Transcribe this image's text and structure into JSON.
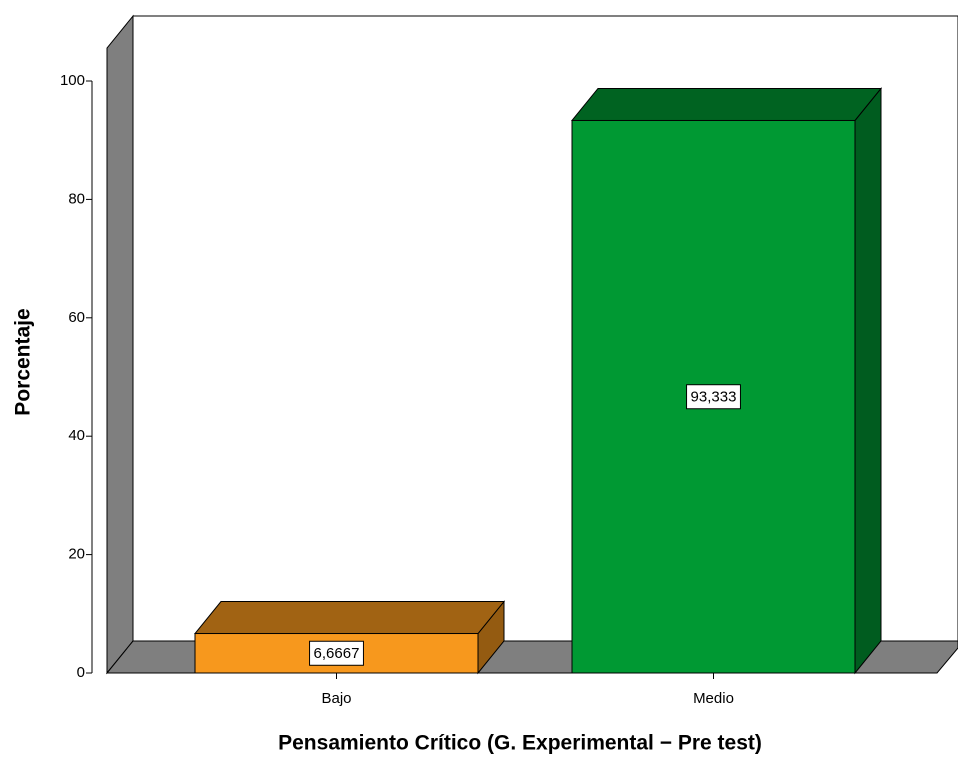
{
  "chart_data": {
    "type": "bar3d",
    "xlabel": "Pensamiento Crítico  (G. Experimental − Pre test)",
    "ylabel": "Porcentaje",
    "categories": [
      "Bajo",
      "Medio"
    ],
    "values": [
      6.6667,
      93.333
    ],
    "value_labels": [
      "6,6667",
      "93,333"
    ],
    "colors": [
      "#f7981d",
      "#009933"
    ],
    "ylim": [
      0,
      100
    ],
    "yticks": [
      0,
      20,
      40,
      60,
      80,
      100
    ],
    "grid": false
  }
}
